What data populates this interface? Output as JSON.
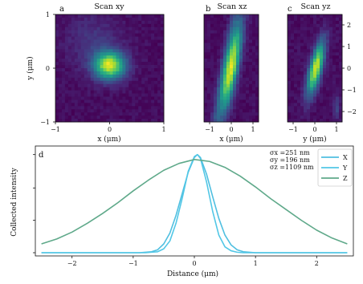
{
  "colors": {
    "x_curve": "#4fbfe0",
    "y_curve": "#52c7e6",
    "z_curve": "#5fa98a"
  },
  "chart_data": [
    {
      "panel": "a",
      "title": "Scan xy",
      "type": "heatmap",
      "xlabel": "x (μm)",
      "ylabel": "y (μm)",
      "xlim": [
        -1,
        1
      ],
      "ylim": [
        -1,
        1
      ],
      "xticks": [
        "−1",
        "0",
        "1"
      ],
      "yticks": [
        "−1",
        "0",
        "1"
      ],
      "spot": {
        "x0": 0.0,
        "y0": 0.05,
        "sx": 0.2,
        "sy": 0.18
      }
    },
    {
      "panel": "b",
      "title": "Scan xz",
      "type": "heatmap",
      "xlabel": "x (μm)",
      "ylabel": "",
      "xlim": [
        -1,
        1
      ],
      "xticks": [
        "−1",
        "0",
        "1"
      ],
      "spot": {
        "x0": 0.0,
        "z0": 0.0,
        "sx": 0.22,
        "sz": 0.9
      }
    },
    {
      "panel": "c",
      "title": "Scan yz",
      "type": "heatmap",
      "xlabel": "y (μm)",
      "ylabel": "",
      "xlim": [
        -1,
        1
      ],
      "ylim": [
        -2,
        2
      ],
      "xticks": [
        "−1",
        "0",
        "1"
      ],
      "yticks": [
        "2",
        "1",
        "0",
        "−1",
        "−2"
      ],
      "spot": {
        "y0": 0.05,
        "z0": 0.0,
        "sy": 0.2,
        "sz": 0.85
      }
    },
    {
      "panel": "d",
      "type": "line",
      "xlabel": "Distance (μm)",
      "ylabel": "Collected intensity",
      "xlim": [
        -2.6,
        2.6
      ],
      "ylim": [
        0,
        1.12
      ],
      "xticks": [
        "−2",
        "−1",
        "0",
        "1",
        "2"
      ],
      "annotations": [
        {
          "text": "σx =251 nm",
          "color": "#52c7e6"
        },
        {
          "text": "σy =196 nm",
          "color": "#52c7e6"
        },
        {
          "text": "σz =1109 nm",
          "color": "#5fa98a"
        }
      ],
      "legend_position": "top-right",
      "series": [
        {
          "name": "X",
          "color": "#4fbfe0",
          "x": [
            -2.5,
            -2.25,
            -2.0,
            -1.75,
            -1.5,
            -1.25,
            -1.0,
            -0.9,
            -0.8,
            -0.7,
            -0.6,
            -0.5,
            -0.4,
            -0.3,
            -0.2,
            -0.1,
            0.0,
            0.05,
            0.1,
            0.2,
            0.3,
            0.4,
            0.5,
            0.6,
            0.7,
            0.8,
            0.9,
            1.0,
            1.25,
            1.5,
            1.75,
            2.0,
            2.25,
            2.5
          ],
          "y": [
            0.0,
            0.0,
            0.0,
            0.0,
            0.0,
            0.0,
            0.0,
            0.0,
            0.005,
            0.01,
            0.03,
            0.09,
            0.2,
            0.38,
            0.6,
            0.82,
            0.97,
            1.0,
            0.97,
            0.8,
            0.57,
            0.35,
            0.18,
            0.08,
            0.03,
            0.01,
            0.005,
            0.0,
            0.0,
            0.0,
            0.0,
            0.0,
            0.0,
            0.0
          ]
        },
        {
          "name": "Y",
          "color": "#52c7e6",
          "x": [
            -2.5,
            -2.25,
            -2.0,
            -1.75,
            -1.5,
            -1.25,
            -1.0,
            -0.9,
            -0.8,
            -0.7,
            -0.6,
            -0.5,
            -0.4,
            -0.3,
            -0.2,
            -0.1,
            0.0,
            0.05,
            0.1,
            0.2,
            0.3,
            0.4,
            0.5,
            0.6,
            0.7,
            0.8,
            0.9,
            1.0,
            1.25,
            1.5,
            1.75,
            2.0,
            2.25,
            2.5
          ],
          "y": [
            0.0,
            0.0,
            0.0,
            0.0,
            0.0,
            0.0,
            0.0,
            0.0,
            0.0,
            0.005,
            0.01,
            0.04,
            0.12,
            0.3,
            0.55,
            0.83,
            0.98,
            1.0,
            0.96,
            0.72,
            0.42,
            0.18,
            0.06,
            0.02,
            0.005,
            0.0,
            0.0,
            0.0,
            0.0,
            0.0,
            0.0,
            0.0,
            0.0,
            0.0
          ]
        },
        {
          "name": "Z",
          "color": "#5fa98a",
          "x": [
            -2.5,
            -2.25,
            -2.0,
            -1.75,
            -1.5,
            -1.25,
            -1.0,
            -0.75,
            -0.5,
            -0.25,
            0.0,
            0.25,
            0.5,
            0.75,
            1.0,
            1.25,
            1.5,
            1.75,
            2.0,
            2.25,
            2.5
          ],
          "y": [
            0.09,
            0.14,
            0.21,
            0.3,
            0.4,
            0.51,
            0.63,
            0.74,
            0.84,
            0.91,
            0.95,
            0.93,
            0.87,
            0.78,
            0.67,
            0.55,
            0.44,
            0.33,
            0.23,
            0.15,
            0.09
          ]
        }
      ]
    }
  ]
}
